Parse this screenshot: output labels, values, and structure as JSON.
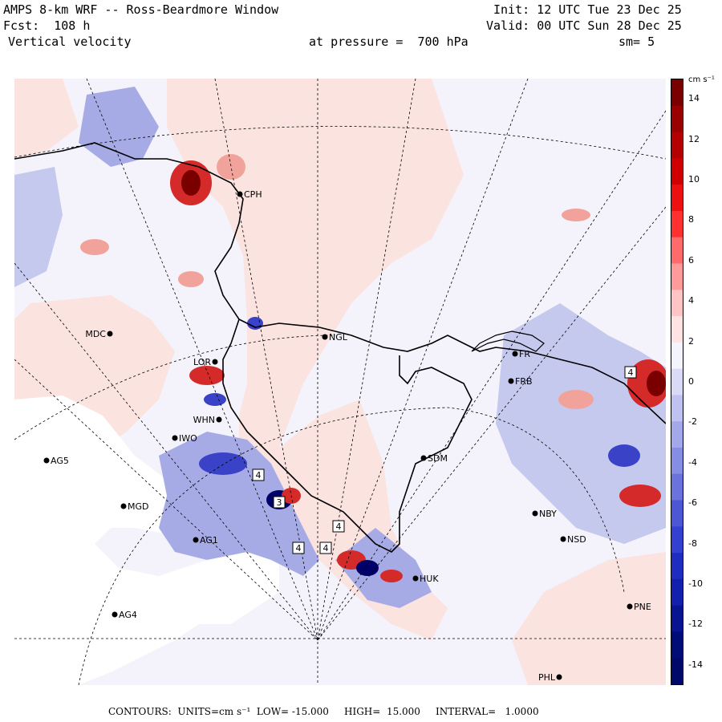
{
  "header": {
    "line1_left": "AMPS 8-km WRF -- Ross-Beardmore Window",
    "line1_right": "Init: 12 UTC Tue 23 Dec 25",
    "line2_left": "Fcst:  108 h",
    "line2_right": "Valid: 00 UTC Sun 28 Dec 25",
    "line3_left": "Vertical velocity",
    "line3_mid": "at pressure =  700 hPa",
    "line3_right": "sm= 5"
  },
  "colorbar": {
    "unit": "cm s⁻¹",
    "ticks": [
      "14",
      "12",
      "10",
      "8",
      "6",
      "4",
      "2",
      "0",
      "-2",
      "-4",
      "-6",
      "-8",
      "-10",
      "-12",
      "-14"
    ],
    "min": -15,
    "max": 15
  },
  "footer": {
    "text": "CONTOURS:  UNITS=cm s⁻¹  LOW= -15.000     HIGH=  15.000     INTERVAL=   1.0000"
  },
  "stations": [
    {
      "id": "CPH",
      "label": "CPH",
      "side": "right"
    },
    {
      "id": "MDC",
      "label": "MDC",
      "side": "left"
    },
    {
      "id": "NGL",
      "label": "NGL",
      "side": "right"
    },
    {
      "id": "LOR",
      "label": "LOR",
      "side": "left"
    },
    {
      "id": "WHN",
      "label": "WHN",
      "side": "left"
    },
    {
      "id": "IWO",
      "label": "IWO",
      "side": "right"
    },
    {
      "id": "AG5",
      "label": "AG5",
      "side": "right"
    },
    {
      "id": "SDM",
      "label": "SDM",
      "side": "right"
    },
    {
      "id": "MGD",
      "label": "MGD",
      "side": "right"
    },
    {
      "id": "AG1",
      "label": "AG1",
      "side": "right"
    },
    {
      "id": "AG4",
      "label": "AG4",
      "side": "right"
    },
    {
      "id": "FRB",
      "label": "FRB",
      "side": "right"
    },
    {
      "id": "FR",
      "label": "FR",
      "side": "right"
    },
    {
      "id": "NBY",
      "label": "NBY",
      "side": "right"
    },
    {
      "id": "NSD",
      "label": "NSD",
      "side": "right"
    },
    {
      "id": "PHL",
      "label": "PHL",
      "side": "left"
    },
    {
      "id": "PNE",
      "label": "PNE",
      "side": "right"
    },
    {
      "id": "HUK",
      "label": "HUK",
      "side": "right"
    }
  ],
  "extremum_markers": [
    "4",
    "3",
    "4",
    "4",
    "4",
    "4"
  ],
  "colors": {
    "pos_light": "#fbe3e0",
    "pos_mid": "#f1a39b",
    "pos_strong": "#d42a2a",
    "pos_max": "#7a0000",
    "neg_light": "#e7e8f8",
    "neg_mid": "#a6abe6",
    "neg_strong": "#3a42c8",
    "neg_max": "#00006a",
    "base": "#f4f2fa"
  }
}
